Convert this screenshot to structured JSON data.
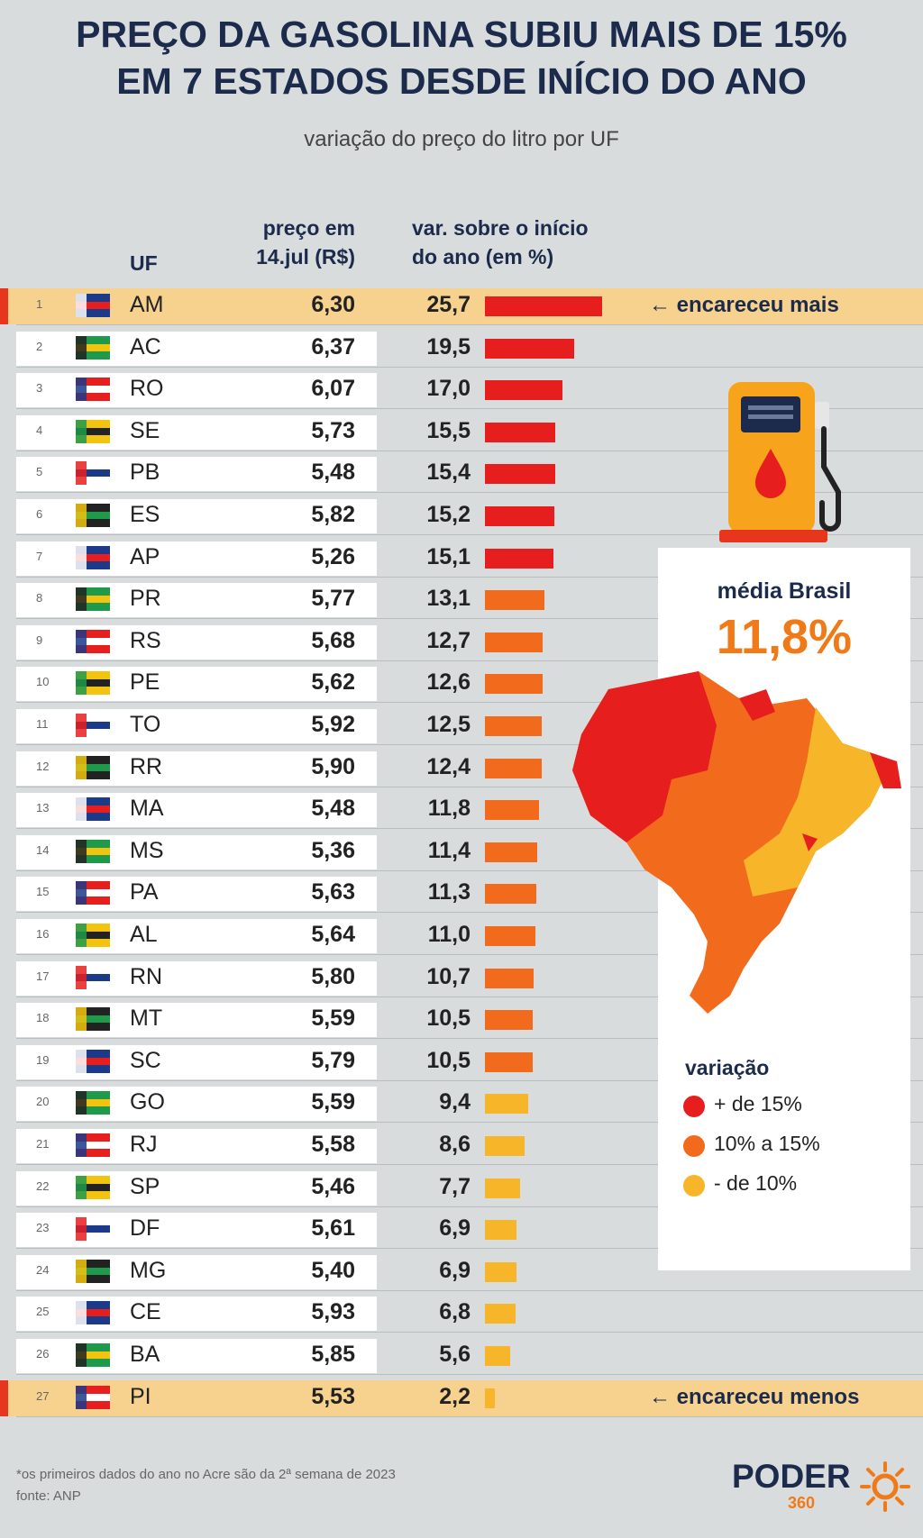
{
  "header": {
    "title_line1": "PREÇO DA GASOLINA SUBIU MAIS DE 15%",
    "title_line2": "EM 7 ESTADOS DESDE INÍCIO DO ANO",
    "subtitle": "variação do preço do litro por UF",
    "col_uf": "UF",
    "col_price_line1": "preço em",
    "col_price_line2": "14.jul (R$)",
    "col_var_line1": "var. sobre o início",
    "col_var_line2": "do ano (em %)"
  },
  "notes": {
    "most": "← encareceu mais",
    "least": "← encareceu menos"
  },
  "average": {
    "label": "média Brasil",
    "value": "11,8%"
  },
  "legend": {
    "title": "variação",
    "items": [
      {
        "label": "+ de 15%",
        "color": "#e61e1e"
      },
      {
        "label": "10% a 15%",
        "color": "#f26a1b"
      },
      {
        "label": "-  de 10%",
        "color": "#f7b52a"
      }
    ]
  },
  "footer": {
    "footnote": "*os primeiros dados do ano no Acre são da 2ª semana de 2023",
    "source": "fonte: ANP",
    "logo": "PODER",
    "logo_sub": "360"
  },
  "chart_data": {
    "type": "bar",
    "orientation": "horizontal",
    "title": "PREÇO DA GASOLINA SUBIU MAIS DE 15% EM 7 ESTADOS DESDE INÍCIO DO ANO",
    "subtitle": "variação do preço do litro por UF",
    "categories": [
      "AM",
      "AC",
      "RO",
      "SE",
      "PB",
      "ES",
      "AP",
      "PR",
      "RS",
      "PE",
      "TO",
      "RR",
      "MA",
      "MS",
      "PA",
      "AL",
      "RN",
      "MT",
      "SC",
      "GO",
      "RJ",
      "SP",
      "DF",
      "MG",
      "CE",
      "BA",
      "PI"
    ],
    "ranks": [
      "1",
      "2",
      "3",
      "4",
      "5",
      "6",
      "7",
      "8",
      "9",
      "10",
      "11",
      "12",
      "13",
      "14",
      "15",
      "16",
      "17",
      "18",
      "19",
      "20",
      "21",
      "22",
      "23",
      "24",
      "25",
      "26",
      "27"
    ],
    "prices": [
      "6,30",
      "6,37",
      "6,07",
      "5,73",
      "5,48",
      "5,82",
      "5,26",
      "5,77",
      "5,68",
      "5,62",
      "5,92",
      "5,90",
      "5,48",
      "5,36",
      "5,63",
      "5,64",
      "5,80",
      "5,59",
      "5,79",
      "5,59",
      "5,58",
      "5,46",
      "5,61",
      "5,40",
      "5,93",
      "5,85",
      "5,53"
    ],
    "value_labels": [
      "25,7",
      "19,5",
      "17,0",
      "15,5",
      "15,4",
      "15,2",
      "15,1",
      "13,1",
      "12,7",
      "12,6",
      "12,5",
      "12,4",
      "11,8",
      "11,4",
      "11,3",
      "11,0",
      "10,7",
      "10,5",
      "10,5",
      "9,4",
      "8,6",
      "7,7",
      "6,9",
      "6,9",
      "6,8",
      "5,6",
      "2,2"
    ],
    "values": [
      25.7,
      19.5,
      17.0,
      15.5,
      15.4,
      15.2,
      15.1,
      13.1,
      12.7,
      12.6,
      12.5,
      12.4,
      11.8,
      11.4,
      11.3,
      11.0,
      10.7,
      10.5,
      10.5,
      9.4,
      8.6,
      7.7,
      6.9,
      6.9,
      6.8,
      5.6,
      2.2
    ],
    "xlim": [
      0,
      25.7
    ],
    "color_thresholds": {
      "high": 15,
      "mid": 10
    },
    "colors": {
      "high": "#e61e1e",
      "mid": "#f26a1b",
      "low": "#f7b52a"
    },
    "highlight_rows": [
      "AM",
      "PI"
    ]
  }
}
